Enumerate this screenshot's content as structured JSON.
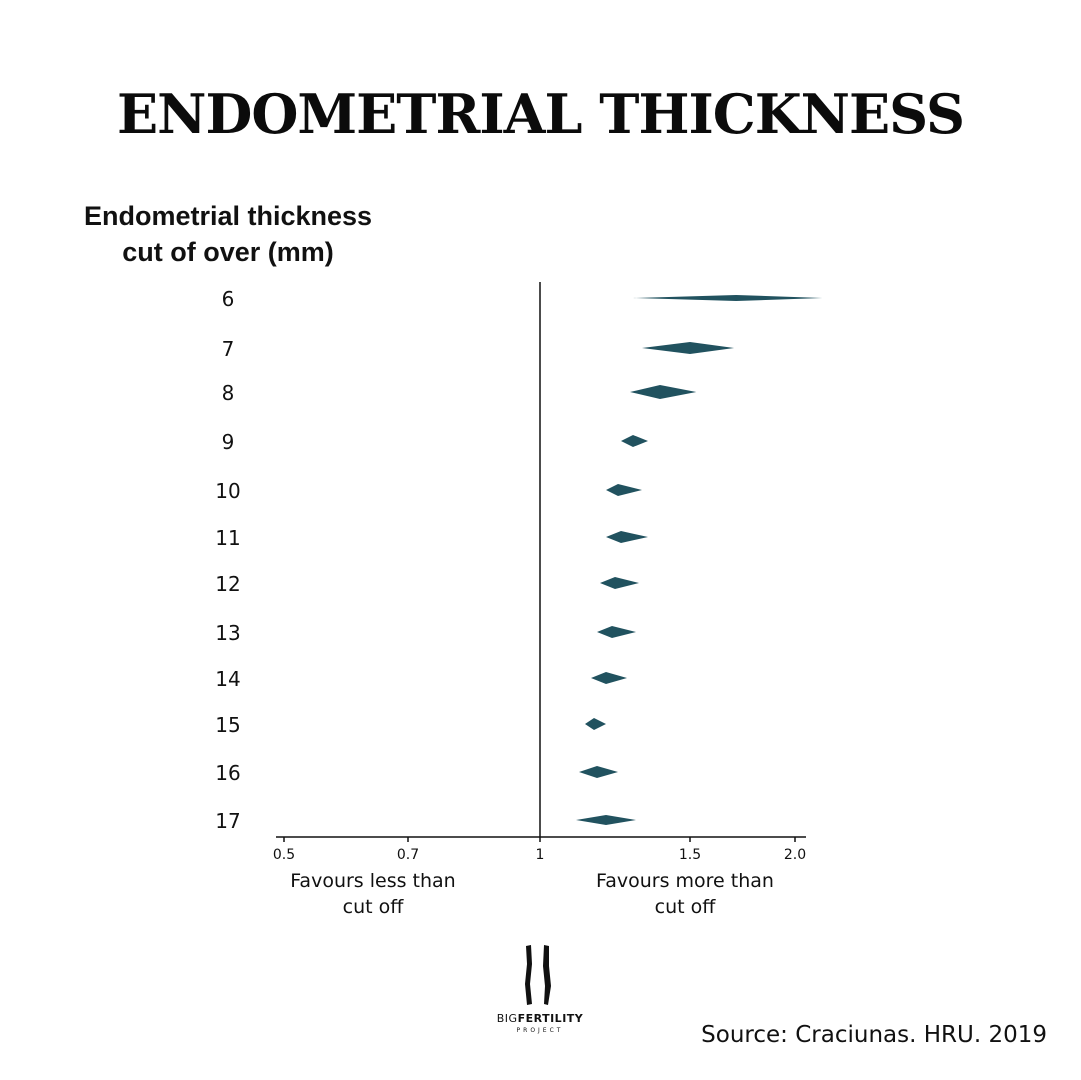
{
  "title": "ENDOMETRIAL THICKNESS",
  "ylabel_line1": "Endometrial thickness",
  "ylabel_line2": "cut of over (mm)",
  "favours_less_line1": "Favours less than",
  "favours_less_line2": "cut off",
  "favours_more_line1": "Favours more than",
  "favours_more_line2": "cut off",
  "source": "Source: Craciunas. HRU. 2019",
  "logo": {
    "word_big": "BIG",
    "word_fertility": "FERTILITY",
    "word_project": "PROJECT"
  },
  "colors": {
    "diamond": "#21525f",
    "axis": "#111111"
  },
  "chart_data": {
    "type": "forest",
    "title": "ENDOMETRIAL THICKNESS",
    "ylabel": "Endometrial thickness cut of over (mm)",
    "x_ticks": [
      {
        "value": 0.5,
        "label": "0.5"
      },
      {
        "value": 0.7,
        "label": "0.7"
      },
      {
        "value": 1,
        "label": "1"
      },
      {
        "value": 1.5,
        "label": "1.5"
      },
      {
        "value": 2.0,
        "label": "2.0"
      }
    ],
    "reference_line": 1,
    "categories": [
      "6",
      "7",
      "8",
      "9",
      "10",
      "11",
      "12",
      "13",
      "14",
      "15",
      "16",
      "17"
    ],
    "estimates": [
      {
        "cutoff": "6",
        "lower": 1.31,
        "point": 1.72,
        "upper": 2.13
      },
      {
        "cutoff": "7",
        "lower": 1.34,
        "point": 1.5,
        "upper": 1.71
      },
      {
        "cutoff": "8",
        "lower": 1.3,
        "point": 1.4,
        "upper": 1.53
      },
      {
        "cutoff": "9",
        "lower": 1.27,
        "point": 1.31,
        "upper": 1.36
      },
      {
        "cutoff": "10",
        "lower": 1.22,
        "point": 1.26,
        "upper": 1.34
      },
      {
        "cutoff": "11",
        "lower": 1.22,
        "point": 1.27,
        "upper": 1.36
      },
      {
        "cutoff": "12",
        "lower": 1.2,
        "point": 1.25,
        "upper": 1.33
      },
      {
        "cutoff": "13",
        "lower": 1.19,
        "point": 1.24,
        "upper": 1.32
      },
      {
        "cutoff": "14",
        "lower": 1.17,
        "point": 1.22,
        "upper": 1.29
      },
      {
        "cutoff": "15",
        "lower": 1.15,
        "point": 1.18,
        "upper": 1.22
      },
      {
        "cutoff": "16",
        "lower": 1.13,
        "point": 1.19,
        "upper": 1.26
      },
      {
        "cutoff": "17",
        "lower": 1.12,
        "point": 1.22,
        "upper": 1.32
      }
    ]
  }
}
